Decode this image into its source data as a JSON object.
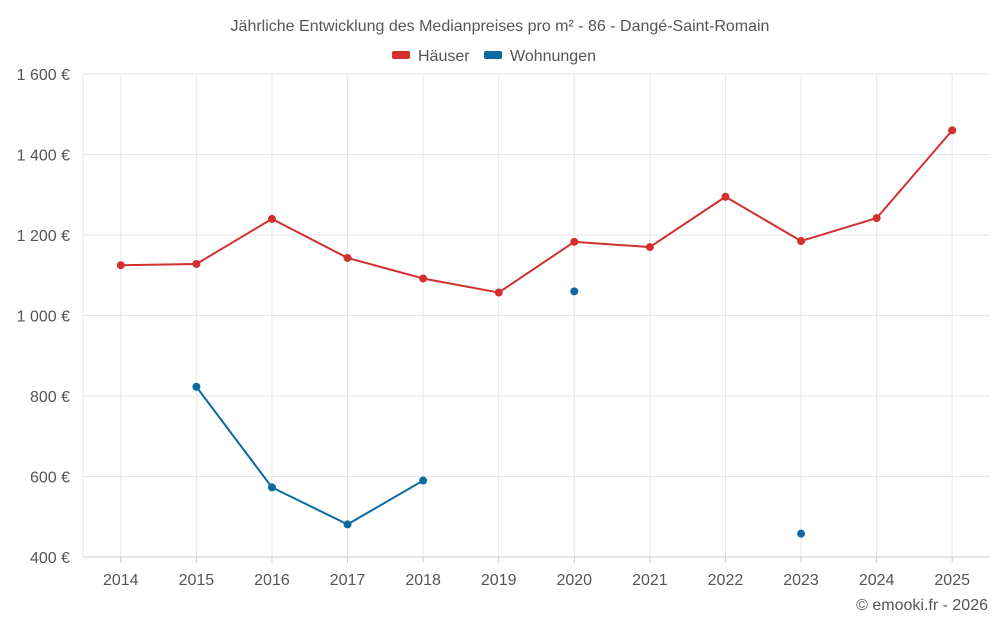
{
  "chart_data": {
    "type": "line",
    "title": "Jährliche Entwicklung des Medianpreises pro m² - 86 - Dangé-Saint-Romain",
    "xlabel": "",
    "ylabel": "",
    "categories": [
      "2014",
      "2015",
      "2016",
      "2017",
      "2018",
      "2019",
      "2020",
      "2021",
      "2022",
      "2023",
      "2024",
      "2025"
    ],
    "ylim": [
      400,
      1600
    ],
    "yticks": [
      400,
      600,
      800,
      1000,
      1200,
      1400,
      1600
    ],
    "ytick_labels": [
      "400 €",
      "600 €",
      "800 €",
      "1 000 €",
      "1 200 €",
      "1 400 €",
      "1 600 €"
    ],
    "grid": true,
    "legend_position": "top-center",
    "series": [
      {
        "name": "Häuser",
        "color": "#d32f2f",
        "values": [
          1125,
          1128,
          1240,
          1143,
          1092,
          1057,
          1183,
          1170,
          1295,
          1185,
          1242,
          1460
        ]
      },
      {
        "name": "Wohnungen",
        "color": "#0d6aa0",
        "values": [
          null,
          823,
          573,
          481,
          590,
          null,
          1060,
          null,
          null,
          458,
          null,
          null
        ]
      }
    ]
  },
  "credit": "© emooki.fr - 2026"
}
